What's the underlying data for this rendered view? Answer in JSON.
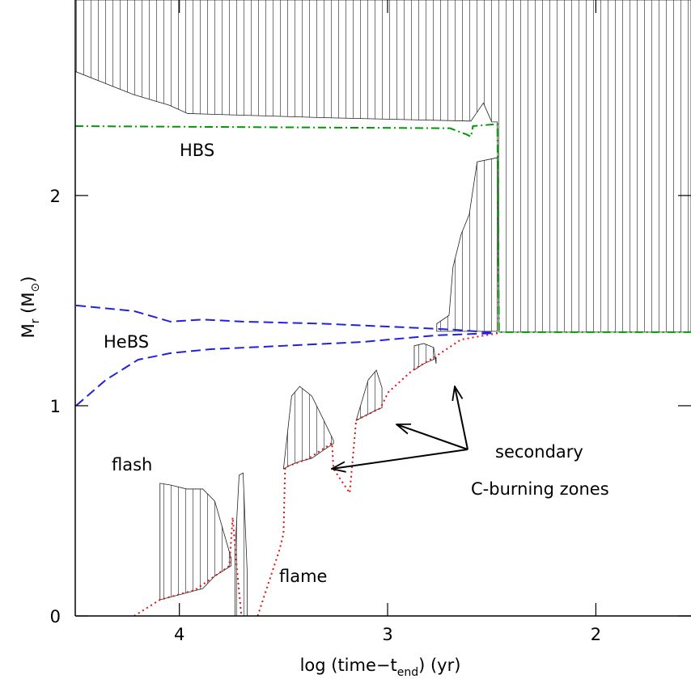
{
  "chart_data": {
    "type": "line",
    "xlabel": [
      "log (time−t",
      "end",
      ") (yr)"
    ],
    "ylabel": [
      "M",
      "r",
      "  (M",
      "⊙",
      ")"
    ],
    "xlim": [
      4.5,
      1.543
    ],
    "ylim": [
      0,
      2.93
    ],
    "xticks": [
      4,
      3,
      2
    ],
    "yticks": [
      0,
      1,
      2
    ],
    "series": [
      {
        "color": "#009900",
        "style": "dash-dot",
        "x": [
          4.5,
          2.7,
          2.62,
          2.6,
          2.59,
          2.473,
          2.465,
          1.543
        ],
        "values": [
          2.33,
          2.32,
          2.29,
          2.28,
          2.33,
          2.34,
          1.35,
          1.35
        ]
      },
      {
        "color": "#2222dd",
        "style": "dash",
        "x": [
          4.496,
          4.217,
          4.043,
          3.888,
          3.694,
          3.306,
          2.919,
          2.686,
          2.473
        ],
        "values": [
          1.477,
          1.45,
          1.4,
          1.41,
          1.4,
          1.39,
          1.373,
          1.362,
          1.346
        ]
      },
      {
        "color": "#2222dd",
        "style": "dash",
        "x": [
          4.496,
          4.353,
          4.198,
          4.043,
          3.849,
          3.5,
          3.112,
          2.764,
          2.473
        ],
        "values": [
          1.0,
          1.123,
          1.219,
          1.25,
          1.269,
          1.285,
          1.304,
          1.335,
          1.346
        ]
      },
      {
        "color": "#dd1111",
        "style": "dot",
        "x": [
          4.217,
          4.093,
          3.926,
          3.76,
          3.744,
          3.725,
          3.702,
          3.68,
          3.624,
          3.519,
          3.5,
          3.492,
          3.384,
          3.267,
          3.26,
          3.182,
          3.151,
          3.035,
          2.996,
          2.88,
          2.764,
          2.647,
          2.465
        ],
        "values": [
          0,
          0.077,
          0.123,
          0.238,
          0.469,
          0.238,
          0,
          null,
          0,
          0.315,
          0.392,
          0.708,
          0.746,
          0.823,
          0.7,
          0.585,
          0.931,
          0.988,
          1.065,
          1.169,
          1.238,
          1.315,
          1.346
        ]
      }
    ],
    "zones": [
      {
        "x": [
          4.5,
          4.22,
          4.05,
          3.96,
          3.3,
          2.6,
          2.54,
          2.5,
          2.473,
          2.465,
          1.543
        ],
        "top": [
          2.93,
          2.93,
          2.93,
          2.93,
          2.93,
          2.93,
          2.93,
          2.93,
          2.93,
          2.93,
          2.93
        ],
        "bottom": [
          2.59,
          2.48,
          2.43,
          2.39,
          2.37,
          2.354,
          2.44,
          2.35,
          2.35,
          1.35,
          1.35
        ]
      },
      {
        "x": [
          2.764,
          2.705,
          2.686,
          2.647,
          2.608,
          2.57,
          2.473
        ],
        "top": [
          1.39,
          1.43,
          1.66,
          1.815,
          1.91,
          2.16,
          2.18
        ],
        "bottom": [
          1.354,
          1.354,
          1.354,
          1.354,
          1.354,
          1.354,
          1.354
        ]
      },
      {
        "x": [
          4.093,
          4.043,
          3.965,
          3.888,
          3.83,
          3.752
        ],
        "top": [
          0.631,
          0.623,
          0.604,
          0.604,
          0.546,
          0.277
        ],
        "bottom": [
          0.077,
          0.09,
          0.11,
          0.13,
          0.19,
          0.238
        ]
      },
      {
        "x": [
          3.733,
          3.713,
          3.694,
          3.674
        ],
        "top": [
          0.3,
          0.67,
          0.68,
          0.2
        ],
        "bottom": [
          0,
          0,
          0,
          0
        ]
      },
      {
        "x": [
          3.5,
          3.461,
          3.422,
          3.364,
          3.306,
          3.26
        ],
        "top": [
          0.7,
          1.046,
          1.092,
          1.046,
          0.93,
          0.835
        ],
        "bottom": [
          0.7,
          0.72,
          0.735,
          0.75,
          0.79,
          0.82
        ]
      },
      {
        "x": [
          3.151,
          3.093,
          3.054,
          3.027
        ],
        "top": [
          0.93,
          1.123,
          1.169,
          1.085
        ],
        "bottom": [
          0.93,
          0.96,
          0.98,
          0.99
        ]
      },
      {
        "x": [
          2.872,
          2.826,
          2.779,
          2.767
        ],
        "top": [
          1.285,
          1.296,
          1.277,
          1.2
        ],
        "bottom": [
          1.17,
          1.2,
          1.22,
          1.23
        ]
      }
    ],
    "annotations": [
      "HBS",
      "HeBS",
      "flash",
      "flame",
      "secondary",
      "C-burning zones"
    ]
  }
}
